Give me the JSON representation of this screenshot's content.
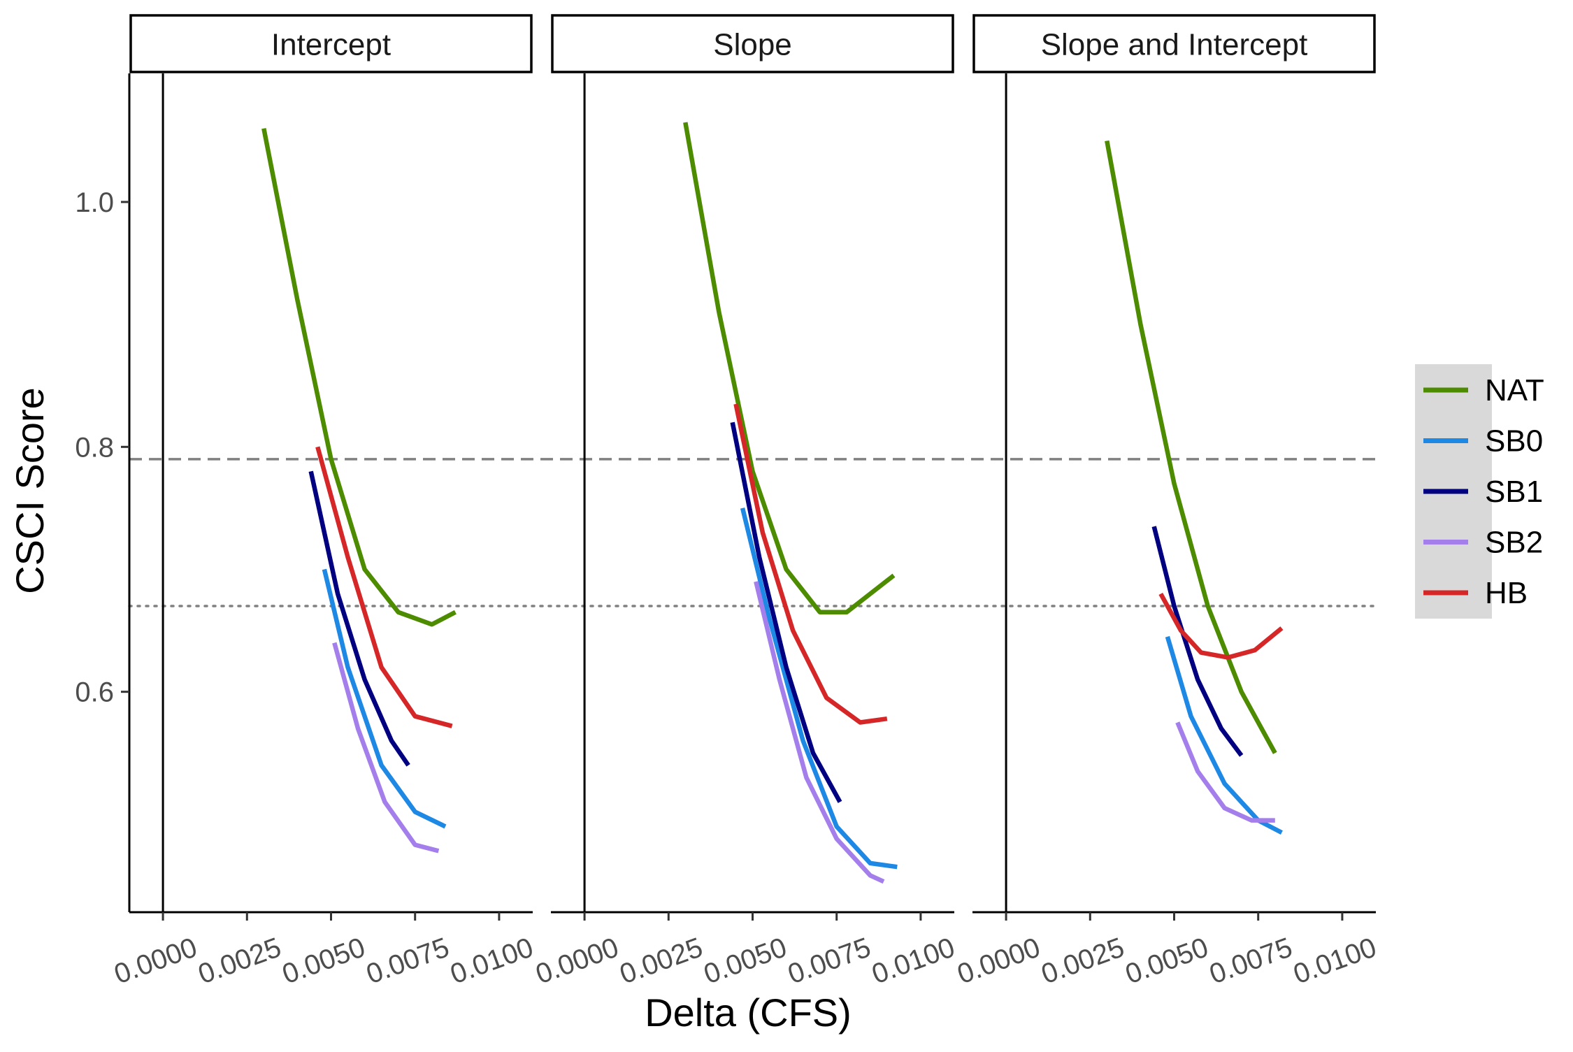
{
  "chart_data": {
    "type": "line",
    "xlabel": "Delta (CFS)",
    "ylabel": "CSCI Score",
    "xlim": [
      -0.001,
      0.011
    ],
    "ylim": [
      0.42,
      1.105
    ],
    "x_ticks": [
      0,
      0.0025,
      0.005,
      0.0075,
      0.01
    ],
    "x_tick_labels": [
      "0.0000",
      "0.0025",
      "0.0050",
      "0.0075",
      "0.0100"
    ],
    "y_ticks": [
      0.6,
      0.8,
      1.0
    ],
    "y_tick_labels": [
      "0.6",
      "0.8",
      "1.0"
    ],
    "reference_lines": [
      {
        "y": 0.79,
        "style": "dashed",
        "color": "#808080"
      },
      {
        "y": 0.67,
        "style": "dotted",
        "color": "#808080"
      }
    ],
    "grid": false,
    "legend_position": "right",
    "legend": [
      {
        "name": "NAT",
        "color": "#4D8C00"
      },
      {
        "name": "SB0",
        "color": "#1E88E5"
      },
      {
        "name": "SB1",
        "color": "#000080"
      },
      {
        "name": "SB2",
        "color": "#A47FEB"
      },
      {
        "name": "HB",
        "color": "#D62728"
      }
    ],
    "panels": [
      {
        "title": "Intercept",
        "series": [
          {
            "name": "NAT",
            "points": [
              [
                0.003,
                1.06
              ],
              [
                0.004,
                0.92
              ],
              [
                0.005,
                0.79
              ],
              [
                0.006,
                0.7
              ],
              [
                0.007,
                0.665
              ],
              [
                0.008,
                0.655
              ],
              [
                0.0087,
                0.665
              ]
            ]
          },
          {
            "name": "SB0",
            "points": [
              [
                0.0048,
                0.7
              ],
              [
                0.0055,
                0.62
              ],
              [
                0.0065,
                0.54
              ],
              [
                0.0075,
                0.502
              ],
              [
                0.0084,
                0.49
              ]
            ]
          },
          {
            "name": "SB1",
            "points": [
              [
                0.0044,
                0.78
              ],
              [
                0.0052,
                0.68
              ],
              [
                0.006,
                0.61
              ],
              [
                0.0068,
                0.56
              ],
              [
                0.0073,
                0.54
              ]
            ]
          },
          {
            "name": "SB2",
            "points": [
              [
                0.0051,
                0.64
              ],
              [
                0.0058,
                0.57
              ],
              [
                0.0066,
                0.51
              ],
              [
                0.0075,
                0.475
              ],
              [
                0.0082,
                0.47
              ]
            ]
          },
          {
            "name": "HB",
            "points": [
              [
                0.0046,
                0.8
              ],
              [
                0.0055,
                0.71
              ],
              [
                0.0065,
                0.62
              ],
              [
                0.0075,
                0.58
              ],
              [
                0.0086,
                0.572
              ]
            ]
          }
        ]
      },
      {
        "title": "Slope",
        "series": [
          {
            "name": "NAT",
            "points": [
              [
                0.003,
                1.065
              ],
              [
                0.004,
                0.91
              ],
              [
                0.005,
                0.78
              ],
              [
                0.006,
                0.7
              ],
              [
                0.007,
                0.665
              ],
              [
                0.0078,
                0.665
              ],
              [
                0.0092,
                0.695
              ]
            ]
          },
          {
            "name": "SB0",
            "points": [
              [
                0.0047,
                0.75
              ],
              [
                0.0055,
                0.66
              ],
              [
                0.0065,
                0.56
              ],
              [
                0.0075,
                0.49
              ],
              [
                0.0085,
                0.46
              ],
              [
                0.0093,
                0.457
              ]
            ]
          },
          {
            "name": "SB1",
            "points": [
              [
                0.0044,
                0.82
              ],
              [
                0.0052,
                0.71
              ],
              [
                0.006,
                0.62
              ],
              [
                0.0068,
                0.55
              ],
              [
                0.0076,
                0.51
              ]
            ]
          },
          {
            "name": "SB2",
            "points": [
              [
                0.0051,
                0.69
              ],
              [
                0.0058,
                0.61
              ],
              [
                0.0066,
                0.53
              ],
              [
                0.0075,
                0.48
              ],
              [
                0.0085,
                0.45
              ],
              [
                0.0089,
                0.445
              ]
            ]
          },
          {
            "name": "HB",
            "points": [
              [
                0.0045,
                0.835
              ],
              [
                0.0053,
                0.73
              ],
              [
                0.0062,
                0.65
              ],
              [
                0.0072,
                0.595
              ],
              [
                0.0082,
                0.575
              ],
              [
                0.009,
                0.578
              ]
            ]
          }
        ]
      },
      {
        "title": "Slope and Intercept",
        "series": [
          {
            "name": "NAT",
            "points": [
              [
                0.003,
                1.05
              ],
              [
                0.004,
                0.9
              ],
              [
                0.005,
                0.77
              ],
              [
                0.006,
                0.67
              ],
              [
                0.007,
                0.6
              ],
              [
                0.008,
                0.55
              ]
            ]
          },
          {
            "name": "SB0",
            "points": [
              [
                0.0048,
                0.645
              ],
              [
                0.0055,
                0.58
              ],
              [
                0.0065,
                0.525
              ],
              [
                0.0075,
                0.495
              ],
              [
                0.0082,
                0.485
              ]
            ]
          },
          {
            "name": "SB1",
            "points": [
              [
                0.0044,
                0.735
              ],
              [
                0.005,
                0.67
              ],
              [
                0.0057,
                0.61
              ],
              [
                0.0064,
                0.57
              ],
              [
                0.007,
                0.548
              ]
            ]
          },
          {
            "name": "SB2",
            "points": [
              [
                0.0051,
                0.575
              ],
              [
                0.0057,
                0.535
              ],
              [
                0.0065,
                0.505
              ],
              [
                0.0073,
                0.495
              ],
              [
                0.008,
                0.495
              ]
            ]
          },
          {
            "name": "HB",
            "points": [
              [
                0.0046,
                0.68
              ],
              [
                0.0052,
                0.65
              ],
              [
                0.0058,
                0.632
              ],
              [
                0.0066,
                0.628
              ],
              [
                0.0074,
                0.634
              ],
              [
                0.0082,
                0.652
              ]
            ]
          }
        ]
      }
    ]
  }
}
